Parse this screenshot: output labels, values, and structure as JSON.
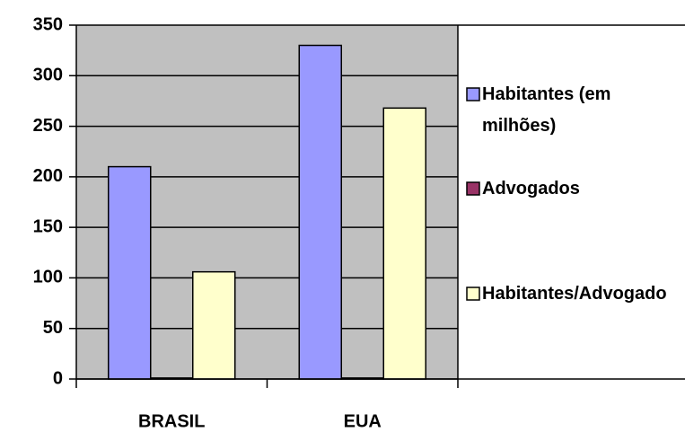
{
  "chart_data": {
    "type": "bar",
    "categories": [
      "BRASIL",
      "EUA"
    ],
    "series": [
      {
        "name": "Habitantes (em milhões)",
        "color": "#9999ff",
        "values": [
          210,
          330
        ]
      },
      {
        "name": "Advogados",
        "color": "#993366",
        "values": [
          1,
          1
        ]
      },
      {
        "name": "Habitantes/Advogado",
        "color": "#ffffcc",
        "values": [
          106,
          268
        ]
      }
    ],
    "ylim": [
      0,
      350
    ],
    "yticks": [
      0,
      50,
      100,
      150,
      200,
      250,
      300,
      350
    ],
    "grid": true,
    "legend": "right"
  }
}
